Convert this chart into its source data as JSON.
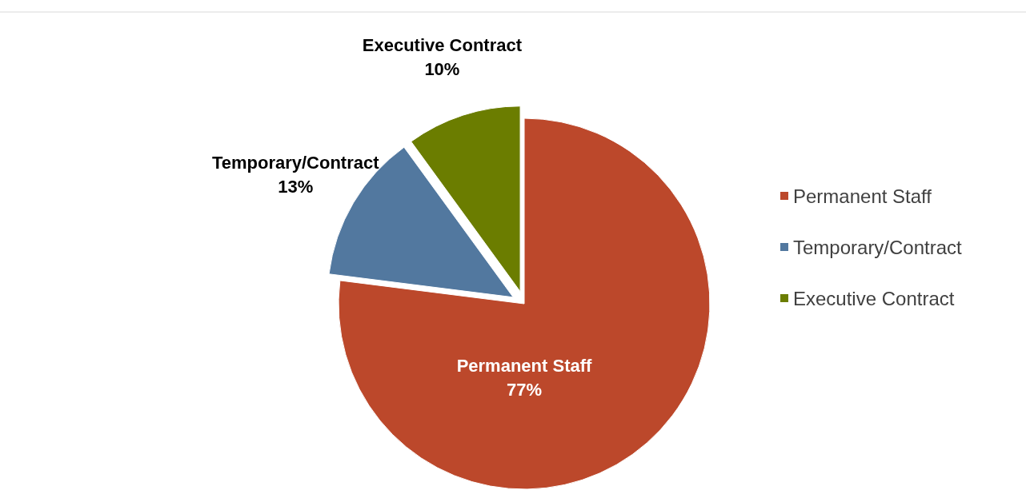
{
  "chart_data": {
    "type": "pie",
    "categories": [
      "Permanent Staff",
      "Temporary/Contract",
      "Executive Contract"
    ],
    "values": [
      77,
      13,
      10
    ],
    "colors": [
      "#bc482b",
      "#52789f",
      "#6b7d00"
    ],
    "value_labels": [
      "77%",
      "13%",
      "10%"
    ],
    "legend": "right"
  }
}
